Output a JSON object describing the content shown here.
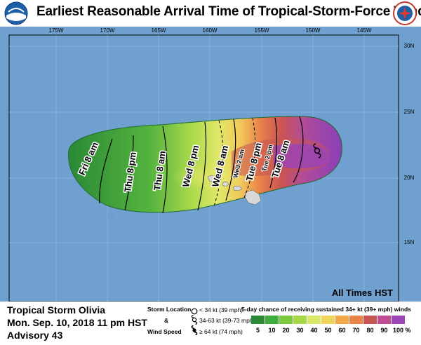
{
  "title": "Earliest Reasonable Arrival Time of Tropical-Storm-Force Winds",
  "map": {
    "lon_labels": [
      "175W",
      "170W",
      "165W",
      "160W",
      "155W",
      "150W",
      "145W"
    ],
    "lat_labels": [
      "30N",
      "25N",
      "20N",
      "15N"
    ],
    "timezone_note": "All Times HST",
    "time_labels": [
      "Fri 8 am",
      "Thu 8 pm",
      "Thu 8 am",
      "Wed 8 pm",
      "Wed 8 am",
      "Wed 2 am",
      "Tue 8 pm",
      "Tue 2 pm",
      "Tue 8 am"
    ],
    "ocean_color": "#6fa0cf",
    "land_color": "#d8d8d8"
  },
  "footer": {
    "storm_name": "Tropical Storm Olivia",
    "datetime": "Mon. Sep. 10, 2018  11 pm HST",
    "advisory": "Advisory 43",
    "legend_title_1": "Storm Location",
    "legend_amp": "&",
    "legend_title_2": "Wind Speed",
    "wind_1": "< 34 kt (39 mph)",
    "wind_2": "34-63 kt (39-73 mph)",
    "wind_3": "≥ 64 kt (74 mph)",
    "prob_title": "5-day chance of receiving sustained 34+ kt (39+ mph) winds",
    "prob_labels": [
      "5",
      "10",
      "20",
      "30",
      "40",
      "50",
      "60",
      "70",
      "80",
      "90",
      "100 %"
    ],
    "prob_colors": [
      "#2a8a36",
      "#3fae3f",
      "#79c83d",
      "#a9d94b",
      "#d9e86a",
      "#f1d45a",
      "#f1a84a",
      "#e8834a",
      "#c95454",
      "#c04d8f",
      "#9a44b8"
    ]
  }
}
